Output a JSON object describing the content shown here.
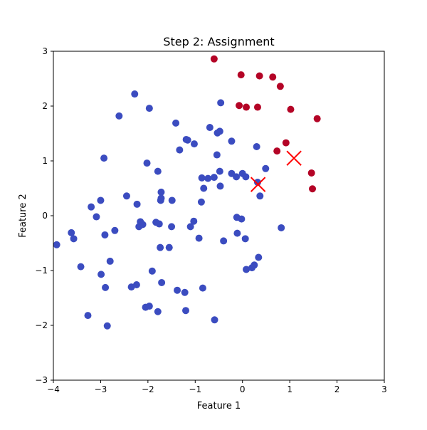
{
  "chart_data": {
    "type": "scatter",
    "title": "Step 2: Assignment",
    "xlabel": "Feature 1",
    "ylabel": "Feature 2",
    "xlim": [
      -4,
      3
    ],
    "ylim": [
      -3,
      3
    ],
    "xticks": [
      -4,
      -3,
      -2,
      -1,
      0,
      1,
      2,
      3
    ],
    "yticks": [
      -3,
      -2,
      -1,
      0,
      1,
      2,
      3
    ],
    "grid": false,
    "legend": "none",
    "clusters": [
      {
        "color": "#3b4cc0",
        "points": [
          [
            -3.93,
            -0.53
          ],
          [
            -3.62,
            -0.31
          ],
          [
            -3.57,
            -0.42
          ],
          [
            -3.42,
            -0.93
          ],
          [
            -3.27,
            -1.82
          ],
          [
            -3.2,
            0.16
          ],
          [
            -3.09,
            -0.02
          ],
          [
            -3.0,
            0.28
          ],
          [
            -2.99,
            -1.07
          ],
          [
            -2.93,
            1.05
          ],
          [
            -2.91,
            -0.35
          ],
          [
            -2.9,
            -1.31
          ],
          [
            -2.86,
            -2.01
          ],
          [
            -2.8,
            -0.83
          ],
          [
            -2.7,
            -0.27
          ],
          [
            -2.61,
            1.82
          ],
          [
            -2.45,
            0.36
          ],
          [
            -2.35,
            -1.3
          ],
          [
            -2.28,
            2.22
          ],
          [
            -2.24,
            -1.26
          ],
          [
            -2.23,
            0.21
          ],
          [
            -2.19,
            -0.2
          ],
          [
            -2.16,
            -0.11
          ],
          [
            -2.11,
            -0.16
          ],
          [
            -2.05,
            -1.67
          ],
          [
            -2.02,
            0.96
          ],
          [
            -1.97,
            1.96
          ],
          [
            -1.97,
            -1.65
          ],
          [
            -1.91,
            -1.01
          ],
          [
            -1.83,
            -0.12
          ],
          [
            -1.79,
            0.81
          ],
          [
            -1.79,
            -1.75
          ],
          [
            -1.76,
            -0.15
          ],
          [
            -1.74,
            -0.58
          ],
          [
            -1.73,
            0.28
          ],
          [
            -1.72,
            0.32
          ],
          [
            -1.72,
            0.43
          ],
          [
            -1.71,
            -1.22
          ],
          [
            -1.55,
            -0.58
          ],
          [
            -1.5,
            -0.2
          ],
          [
            -1.49,
            0.28
          ],
          [
            -1.41,
            1.69
          ],
          [
            -1.38,
            -1.36
          ],
          [
            -1.33,
            1.2
          ],
          [
            -1.22,
            -1.4
          ],
          [
            -1.2,
            -1.73
          ],
          [
            -1.19,
            1.39
          ],
          [
            -1.16,
            1.38
          ],
          [
            -1.1,
            -0.2
          ],
          [
            -1.03,
            -0.1
          ],
          [
            -1.02,
            1.31
          ],
          [
            -0.92,
            -0.41
          ],
          [
            -0.87,
            0.25
          ],
          [
            -0.86,
            0.69
          ],
          [
            -0.84,
            -1.32
          ],
          [
            -0.82,
            0.5
          ],
          [
            -0.73,
            0.68
          ],
          [
            -0.69,
            1.61
          ],
          [
            -0.6,
            0.7
          ],
          [
            -0.59,
            -1.9
          ],
          [
            -0.54,
            1.11
          ],
          [
            -0.53,
            1.51
          ],
          [
            -0.48,
            1.54
          ],
          [
            -0.48,
            0.81
          ],
          [
            -0.47,
            0.54
          ],
          [
            -0.46,
            2.06
          ],
          [
            -0.4,
            -0.46
          ],
          [
            -0.23,
            1.36
          ],
          [
            -0.23,
            0.77
          ],
          [
            -0.13,
            0.71
          ],
          [
            -0.12,
            -0.03
          ],
          [
            -0.11,
            -0.32
          ],
          [
            -0.02,
            -0.06
          ],
          [
            0.0,
            0.77
          ],
          [
            0.06,
            -0.42
          ],
          [
            0.07,
            0.71
          ],
          [
            0.08,
            -0.98
          ],
          [
            0.2,
            -0.95
          ],
          [
            0.25,
            -0.9
          ],
          [
            0.3,
            1.26
          ],
          [
            0.32,
            0.61
          ],
          [
            0.34,
            -0.76
          ],
          [
            0.37,
            0.36
          ],
          [
            0.49,
            0.86
          ],
          [
            0.82,
            -0.22
          ]
        ]
      },
      {
        "color": "#b40426",
        "points": [
          [
            -0.6,
            2.86
          ],
          [
            -0.07,
            2.01
          ],
          [
            -0.03,
            2.57
          ],
          [
            0.08,
            1.98
          ],
          [
            0.32,
            1.98
          ],
          [
            0.36,
            2.55
          ],
          [
            0.64,
            2.53
          ],
          [
            0.73,
            1.18
          ],
          [
            0.8,
            2.36
          ],
          [
            0.92,
            1.33
          ],
          [
            1.02,
            1.94
          ],
          [
            1.46,
            0.78
          ],
          [
            1.48,
            0.49
          ],
          [
            1.58,
            1.77
          ]
        ]
      }
    ],
    "centroids": {
      "color": "#ff0000",
      "marker": "x",
      "points": [
        [
          0.33,
          0.57
        ],
        [
          1.09,
          1.05
        ]
      ]
    }
  }
}
